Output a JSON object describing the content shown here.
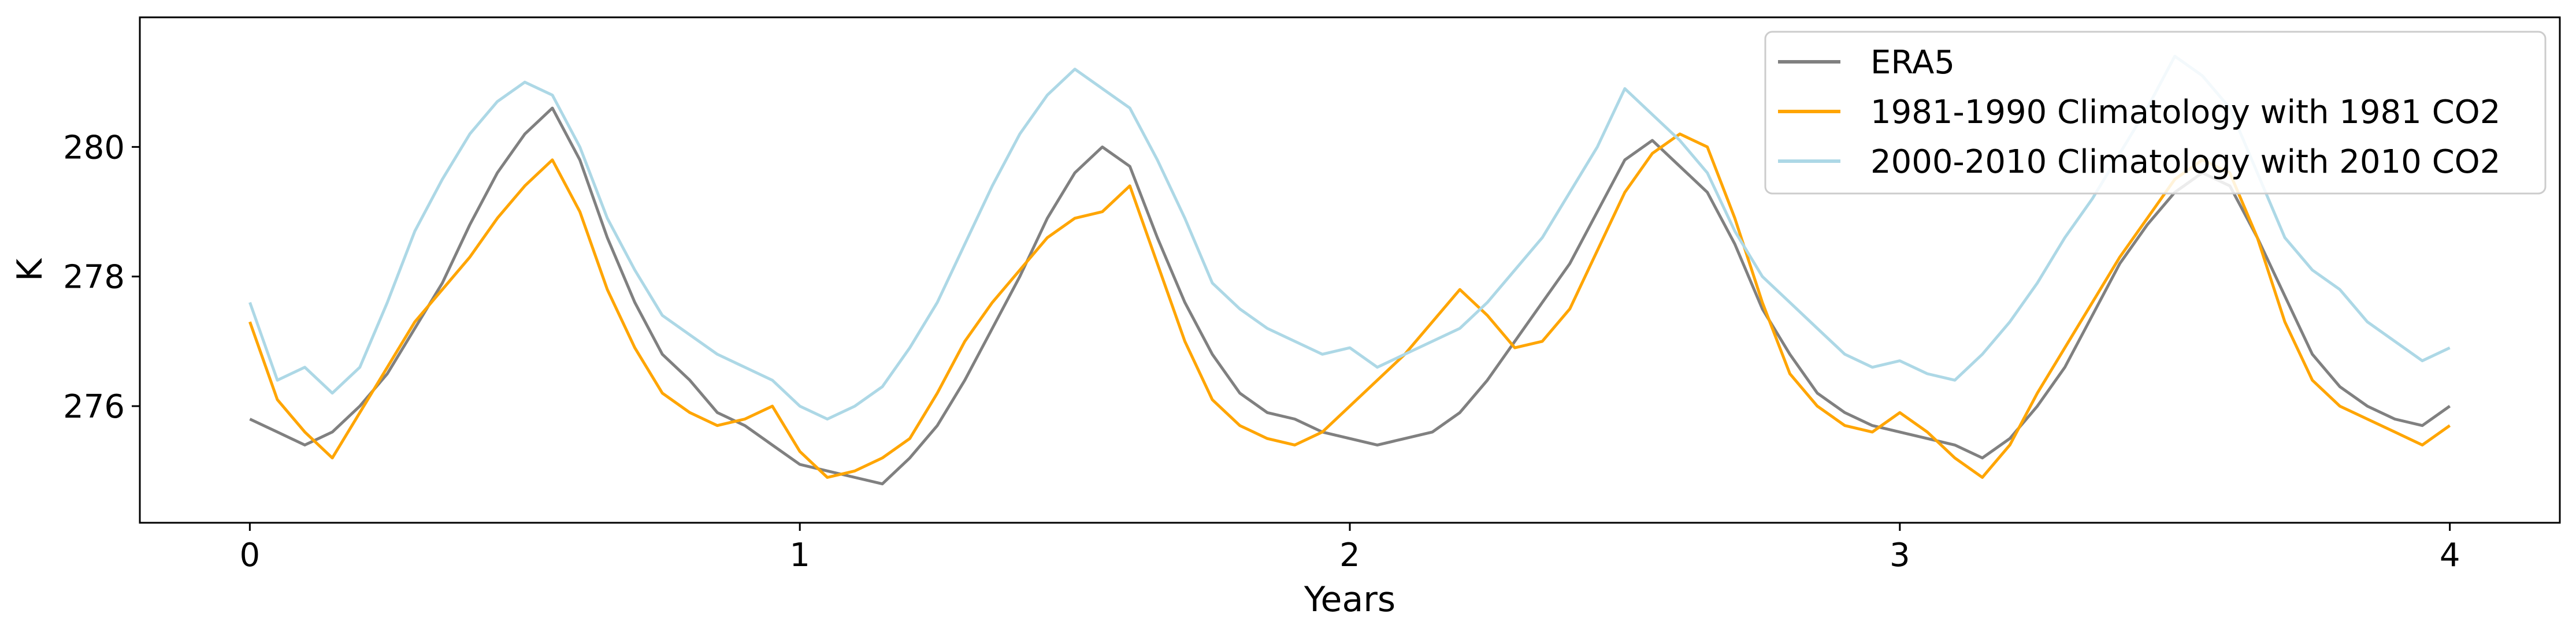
{
  "chart_data": {
    "type": "line",
    "title": "",
    "xlabel": "Years",
    "ylabel": "K",
    "xlim": [
      -0.2,
      4.2
    ],
    "ylim": [
      274.2,
      282.0
    ],
    "xticks": [
      0,
      1,
      2,
      3,
      4
    ],
    "xtick_labels": [
      "0",
      "1",
      "2",
      "3",
      "4"
    ],
    "yticks": [
      276,
      278,
      280
    ],
    "ytick_labels": [
      "276",
      "278",
      "280"
    ],
    "grid": false,
    "legend_position": "top-right",
    "series": [
      {
        "name": "ERA5",
        "color": "#808080",
        "x": [
          0,
          0.05,
          0.1,
          0.15,
          0.2,
          0.25,
          0.3,
          0.35,
          0.4,
          0.45,
          0.5,
          0.55,
          0.6,
          0.65,
          0.7,
          0.75,
          0.8,
          0.85,
          0.9,
          0.95,
          1.0,
          1.05,
          1.1,
          1.15,
          1.2,
          1.25,
          1.3,
          1.35,
          1.4,
          1.45,
          1.5,
          1.55,
          1.6,
          1.65,
          1.7,
          1.75,
          1.8,
          1.85,
          1.9,
          1.95,
          2.0,
          2.05,
          2.1,
          2.15,
          2.2,
          2.25,
          2.3,
          2.35,
          2.4,
          2.45,
          2.5,
          2.55,
          2.6,
          2.65,
          2.7,
          2.75,
          2.8,
          2.85,
          2.9,
          2.95,
          3.0,
          3.05,
          3.1,
          3.15,
          3.2,
          3.25,
          3.3,
          3.35,
          3.4,
          3.45,
          3.5,
          3.55,
          3.6,
          3.65,
          3.7,
          3.75,
          3.8,
          3.85,
          3.9,
          3.95,
          4.0
        ],
        "values": [
          275.8,
          275.6,
          275.4,
          275.6,
          276.0,
          276.5,
          277.2,
          277.9,
          278.8,
          279.6,
          280.2,
          280.6,
          279.8,
          278.6,
          277.6,
          276.8,
          276.4,
          275.9,
          275.7,
          275.4,
          275.1,
          275.0,
          274.9,
          274.8,
          275.2,
          275.7,
          276.4,
          277.2,
          278.0,
          278.9,
          279.6,
          280.0,
          279.7,
          278.6,
          277.6,
          276.8,
          276.2,
          275.9,
          275.8,
          275.6,
          275.5,
          275.4,
          275.5,
          275.6,
          275.9,
          276.4,
          277.0,
          277.6,
          278.2,
          279.0,
          279.8,
          280.1,
          279.7,
          279.3,
          278.5,
          277.5,
          276.8,
          276.2,
          275.9,
          275.7,
          275.6,
          275.5,
          275.4,
          275.2,
          275.5,
          276.0,
          276.6,
          277.4,
          278.2,
          278.8,
          279.3,
          279.6,
          279.4,
          278.6,
          277.7,
          276.8,
          276.3,
          276.0,
          275.8,
          275.7,
          276.0
        ]
      },
      {
        "name": "1981-1990 Climatology with 1981 CO2",
        "color": "#ffa500",
        "x": [
          0,
          0.05,
          0.1,
          0.15,
          0.2,
          0.25,
          0.3,
          0.35,
          0.4,
          0.45,
          0.5,
          0.55,
          0.6,
          0.65,
          0.7,
          0.75,
          0.8,
          0.85,
          0.9,
          0.95,
          1.0,
          1.05,
          1.1,
          1.15,
          1.2,
          1.25,
          1.3,
          1.35,
          1.4,
          1.45,
          1.5,
          1.55,
          1.6,
          1.65,
          1.7,
          1.75,
          1.8,
          1.85,
          1.9,
          1.95,
          2.0,
          2.05,
          2.1,
          2.15,
          2.2,
          2.25,
          2.3,
          2.35,
          2.4,
          2.45,
          2.5,
          2.55,
          2.6,
          2.65,
          2.7,
          2.75,
          2.8,
          2.85,
          2.9,
          2.95,
          3.0,
          3.05,
          3.1,
          3.15,
          3.2,
          3.25,
          3.3,
          3.35,
          3.4,
          3.45,
          3.5,
          3.55,
          3.6,
          3.65,
          3.7,
          3.75,
          3.8,
          3.85,
          3.9,
          3.95,
          4.0
        ],
        "values": [
          277.3,
          276.1,
          275.6,
          275.2,
          275.9,
          276.6,
          277.3,
          277.8,
          278.3,
          278.9,
          279.4,
          279.8,
          279.0,
          277.8,
          276.9,
          276.2,
          275.9,
          275.7,
          275.8,
          276.0,
          275.3,
          274.9,
          275.0,
          275.2,
          275.5,
          276.2,
          277.0,
          277.6,
          278.1,
          278.6,
          278.9,
          279.0,
          279.4,
          278.2,
          277.0,
          276.1,
          275.7,
          275.5,
          275.4,
          275.6,
          276.0,
          276.4,
          276.8,
          277.3,
          277.8,
          277.4,
          276.9,
          277.0,
          277.5,
          278.4,
          279.3,
          279.9,
          280.2,
          280.0,
          278.9,
          277.6,
          276.5,
          276.0,
          275.7,
          275.6,
          275.9,
          275.6,
          275.2,
          274.9,
          275.4,
          276.2,
          276.9,
          277.6,
          278.3,
          278.9,
          279.5,
          279.8,
          279.6,
          278.6,
          277.3,
          276.4,
          276.0,
          275.8,
          275.6,
          275.4,
          275.7
        ]
      },
      {
        "name": "2000-2010 Climatology with 2010 CO2",
        "color": "#add8e6",
        "x": [
          0,
          0.05,
          0.1,
          0.15,
          0.2,
          0.25,
          0.3,
          0.35,
          0.4,
          0.45,
          0.5,
          0.55,
          0.6,
          0.65,
          0.7,
          0.75,
          0.8,
          0.85,
          0.9,
          0.95,
          1.0,
          1.05,
          1.1,
          1.15,
          1.2,
          1.25,
          1.3,
          1.35,
          1.4,
          1.45,
          1.5,
          1.55,
          1.6,
          1.65,
          1.7,
          1.75,
          1.8,
          1.85,
          1.9,
          1.95,
          2.0,
          2.05,
          2.1,
          2.15,
          2.2,
          2.25,
          2.3,
          2.35,
          2.4,
          2.45,
          2.5,
          2.55,
          2.6,
          2.65,
          2.7,
          2.75,
          2.8,
          2.85,
          2.9,
          2.95,
          3.0,
          3.05,
          3.1,
          3.15,
          3.2,
          3.25,
          3.3,
          3.35,
          3.4,
          3.45,
          3.5,
          3.55,
          3.6,
          3.65,
          3.7,
          3.75,
          3.8,
          3.85,
          3.9,
          3.95,
          4.0
        ],
        "values": [
          277.6,
          276.4,
          276.6,
          276.2,
          276.6,
          277.6,
          278.7,
          279.5,
          280.2,
          280.7,
          281.0,
          280.8,
          280.0,
          278.9,
          278.1,
          277.4,
          277.1,
          276.8,
          276.6,
          276.4,
          276.0,
          275.8,
          276.0,
          276.3,
          276.9,
          277.6,
          278.5,
          279.4,
          280.2,
          280.8,
          281.2,
          280.9,
          280.6,
          279.8,
          278.9,
          277.9,
          277.5,
          277.2,
          277.0,
          276.8,
          276.9,
          276.6,
          276.8,
          277.0,
          277.2,
          277.6,
          278.1,
          278.6,
          279.3,
          280.0,
          280.9,
          280.5,
          280.1,
          279.6,
          278.7,
          278.0,
          277.6,
          277.2,
          276.8,
          276.6,
          276.7,
          276.5,
          276.4,
          276.8,
          277.3,
          277.9,
          278.6,
          279.2,
          279.9,
          280.6,
          281.4,
          281.1,
          280.6,
          279.6,
          278.6,
          278.1,
          277.8,
          277.3,
          277.0,
          276.7,
          276.9
        ]
      }
    ]
  }
}
